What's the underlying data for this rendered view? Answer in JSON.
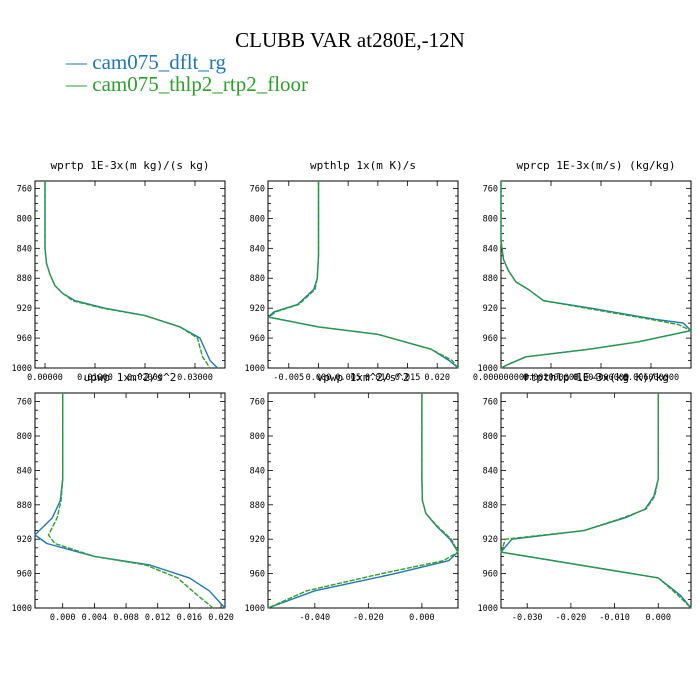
{
  "title": "CLUBB VAR at280E,-12N",
  "legend": [
    {
      "label": "cam075_dflt_rg",
      "color": "#1f77b4"
    },
    {
      "label": "cam075_thlp2_rtp2_floor",
      "color": "#2ca02c"
    }
  ],
  "chart_data": [
    {
      "type": "line",
      "title": "wprtp  1E-3x(m kg)/(s kg)",
      "ylim": [
        1000,
        750
      ],
      "yticks": [
        760,
        800,
        840,
        880,
        920,
        960,
        1000
      ],
      "xlim": [
        -0.002,
        0.036
      ],
      "xticks": [
        0.0,
        0.01,
        0.02,
        0.03
      ],
      "xticklabels": [
        "0.00000",
        "0.01000",
        "0.02000",
        "0.03000"
      ],
      "series": [
        {
          "name": "cam075_dflt_rg",
          "x": [
            0.0,
            0.0,
            0.0,
            0.0003,
            0.001,
            0.002,
            0.0035,
            0.006,
            0.012,
            0.02,
            0.027,
            0.031,
            0.033,
            0.0345
          ],
          "y": [
            750,
            800,
            840,
            860,
            875,
            890,
            900,
            910,
            920,
            930,
            945,
            960,
            990,
            1000
          ]
        },
        {
          "name": "cam075_thlp2_rtp2_floor",
          "x": [
            0.0,
            0.0,
            0.0,
            0.0003,
            0.001,
            0.002,
            0.0035,
            0.0055,
            0.0115,
            0.02,
            0.027,
            0.0305,
            0.0315,
            0.033
          ],
          "y": [
            750,
            800,
            840,
            860,
            875,
            890,
            900,
            910,
            920,
            930,
            945,
            960,
            985,
            1000
          ]
        }
      ]
    },
    {
      "type": "line",
      "title": "wpthlp  1x(m K)/s",
      "ylim": [
        1000,
        750
      ],
      "yticks": [
        760,
        800,
        840,
        880,
        920,
        960,
        1000
      ],
      "xlim": [
        -0.0085,
        0.0235
      ],
      "xticks": [
        -0.005,
        0.0,
        0.005,
        0.01,
        0.015,
        0.02
      ],
      "xticklabels": [
        "-0.005",
        "0.000",
        "0.005",
        "0.010",
        "0.015",
        "0.020"
      ],
      "series": [
        {
          "name": "cam075_dflt_rg",
          "x": [
            0.0,
            0.0,
            0.0,
            -0.0002,
            -0.0008,
            -0.0035,
            -0.0075,
            -0.0085,
            0.0,
            0.01,
            0.019,
            0.022,
            0.0235
          ],
          "y": [
            750,
            800,
            850,
            880,
            895,
            915,
            925,
            932,
            945,
            955,
            975,
            990,
            1000
          ]
        },
        {
          "name": "cam075_thlp2_rtp2_floor",
          "x": [
            0.0,
            0.0,
            0.0,
            -0.0002,
            -0.0006,
            -0.0033,
            -0.0072,
            -0.0083,
            0.0,
            0.01,
            0.019,
            0.0225,
            0.0235
          ],
          "y": [
            750,
            800,
            850,
            880,
            895,
            915,
            925,
            932,
            945,
            955,
            975,
            990,
            1000
          ]
        }
      ]
    },
    {
      "type": "line",
      "title": "wprcp  1E-3x(m/s) (kg/kg)",
      "ylim": [
        1000,
        750
      ],
      "yticks": [
        760,
        800,
        840,
        880,
        920,
        960,
        1000
      ],
      "xlim": [
        0.0,
        0.0076
      ],
      "xticks": [
        0.0,
        0.002,
        0.004,
        0.006
      ],
      "xticklabels": [
        "0.000000000",
        "0.002000000",
        "0.004000000",
        "0.006000000"
      ],
      "series": [
        {
          "name": "cam075_dflt_rg",
          "x": [
            0.0,
            0.0,
            0.0001,
            0.0003,
            0.0006,
            0.0011,
            0.0017,
            0.0036,
            0.0062,
            0.0073,
            0.0076,
            0.0055,
            0.0035,
            0.001,
            0.0003,
            0.0
          ],
          "y": [
            750,
            830,
            855,
            870,
            885,
            895,
            910,
            920,
            935,
            940,
            950,
            965,
            975,
            985,
            995,
            1000
          ]
        },
        {
          "name": "cam075_thlp2_rtp2_floor",
          "x": [
            0.0,
            0.0,
            0.0001,
            0.0003,
            0.0006,
            0.0011,
            0.0017,
            0.0034,
            0.006,
            0.0071,
            0.0076,
            0.0055,
            0.0035,
            0.001,
            0.0003,
            0.0
          ],
          "y": [
            750,
            830,
            855,
            870,
            885,
            895,
            910,
            920,
            935,
            942,
            950,
            965,
            975,
            985,
            995,
            1000
          ]
        }
      ]
    },
    {
      "type": "line",
      "title": "upwp  1xm^2/s^2",
      "ylim": [
        1000,
        750
      ],
      "yticks": [
        760,
        800,
        840,
        880,
        920,
        960,
        1000
      ],
      "xlim": [
        -0.0035,
        0.0205
      ],
      "xticks": [
        0.0,
        0.004,
        0.008,
        0.012,
        0.016,
        0.02
      ],
      "xticklabels": [
        "0.000",
        "0.004",
        "0.008",
        "0.012",
        "0.016",
        "0.020"
      ],
      "series": [
        {
          "name": "cam075_dflt_rg",
          "x": [
            0.0,
            0.0,
            0.0,
            -0.0003,
            -0.0013,
            -0.0035,
            -0.002,
            0.004,
            0.011,
            0.016,
            0.0185,
            0.0205
          ],
          "y": [
            750,
            800,
            850,
            875,
            895,
            915,
            925,
            940,
            950,
            965,
            980,
            1000
          ]
        },
        {
          "name": "cam075_thlp2_rtp2_floor",
          "x": [
            0.0,
            0.0,
            0.0,
            -0.0002,
            -0.0007,
            -0.0018,
            -0.001,
            0.004,
            0.0105,
            0.0145,
            0.017,
            0.019
          ],
          "y": [
            750,
            800,
            850,
            875,
            895,
            915,
            925,
            940,
            950,
            965,
            985,
            1000
          ]
        }
      ]
    },
    {
      "type": "line",
      "title": "vpwp  1xm^2/s^2",
      "ylim": [
        1000,
        750
      ],
      "yticks": [
        760,
        800,
        840,
        880,
        920,
        960,
        1000
      ],
      "xlim": [
        -0.0575,
        0.0135
      ],
      "xticks": [
        -0.04,
        -0.02,
        0.0
      ],
      "xticklabels": [
        "-0.040",
        "-0.020",
        "0.000"
      ],
      "series": [
        {
          "name": "cam075_dflt_rg",
          "x": [
            0.0,
            0.0,
            0.0,
            0.0002,
            0.0015,
            0.0055,
            0.0105,
            0.0135,
            0.01,
            -0.01,
            -0.04,
            -0.0575
          ],
          "y": [
            750,
            800,
            850,
            875,
            890,
            905,
            920,
            935,
            945,
            960,
            980,
            1000
          ]
        },
        {
          "name": "cam075_thlp2_rtp2_floor",
          "x": [
            0.0,
            0.0,
            0.0,
            0.0002,
            0.0015,
            0.0058,
            0.011,
            0.0135,
            0.008,
            -0.015,
            -0.043,
            -0.0575
          ],
          "y": [
            750,
            800,
            850,
            875,
            890,
            905,
            920,
            935,
            945,
            960,
            980,
            1000
          ]
        }
      ]
    },
    {
      "type": "line",
      "title": "rtpthlp  1E-3x(kg K)/kg",
      "ylim": [
        1000,
        750
      ],
      "yticks": [
        760,
        800,
        840,
        880,
        920,
        960,
        1000
      ],
      "xlim": [
        -0.036,
        0.0075
      ],
      "xticks": [
        -0.03,
        -0.02,
        -0.01,
        0.0
      ],
      "xticklabels": [
        "-0.030",
        "-0.020",
        "-0.010",
        "0.000"
      ],
      "series": [
        {
          "name": "cam075_dflt_rg",
          "x": [
            0.0,
            0.0,
            0.0,
            -0.001,
            -0.003,
            -0.0075,
            -0.017,
            -0.0335,
            -0.036,
            0.0,
            0.005,
            0.0075
          ],
          "y": [
            750,
            800,
            850,
            870,
            885,
            895,
            910,
            920,
            935,
            965,
            985,
            1000
          ]
        },
        {
          "name": "cam075_thlp2_rtp2_floor",
          "x": [
            0.0,
            0.0,
            0.0,
            -0.0008,
            -0.0028,
            -0.008,
            -0.017,
            -0.035,
            -0.036,
            0.0,
            0.0045,
            0.0075
          ],
          "y": [
            750,
            800,
            850,
            870,
            885,
            895,
            910,
            920,
            935,
            965,
            985,
            1000
          ]
        }
      ]
    }
  ]
}
